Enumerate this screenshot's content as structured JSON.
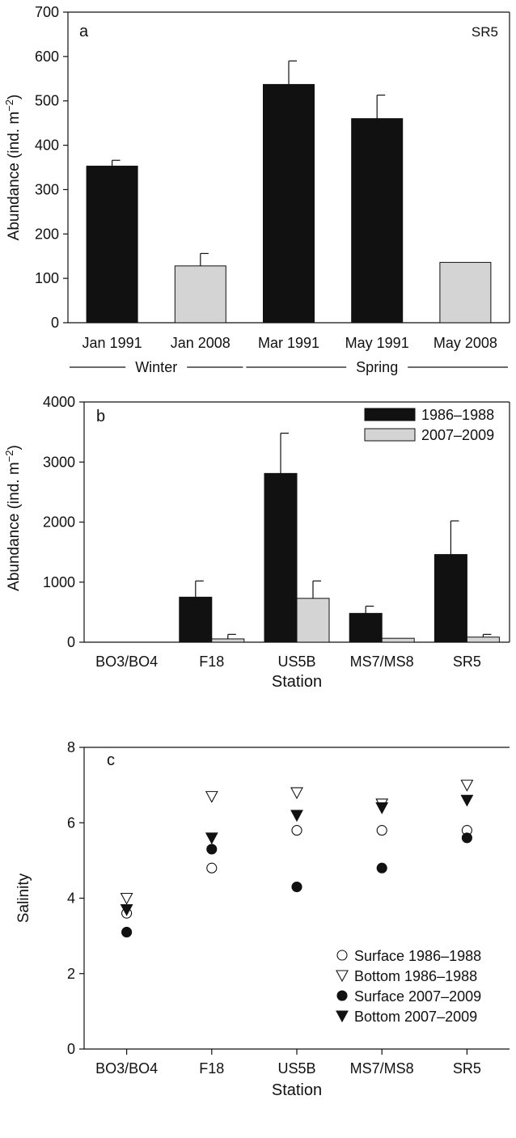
{
  "chart_data": [
    {
      "panel_label": "a",
      "type": "bar",
      "annotation": "SR5",
      "ylabel": "Abundance (ind. m",
      "ylabel_sup": "−2",
      "ylabel_end": ")",
      "ylim": [
        0,
        700
      ],
      "yticks": [
        0,
        100,
        200,
        300,
        400,
        500,
        600,
        700
      ],
      "categories": [
        "Jan 1991",
        "Jan 2008",
        "Mar 1991",
        "May 1991",
        "May 2008"
      ],
      "values": [
        353,
        128,
        537,
        460,
        136
      ],
      "errors": [
        13,
        28,
        53,
        53,
        0
      ],
      "bar_colors": [
        "#111111",
        "#d4d4d4",
        "#111111",
        "#111111",
        "#d4d4d4"
      ],
      "season_groups": [
        {
          "label": "Winter",
          "from": 0,
          "to": 1
        },
        {
          "label": "Spring",
          "from": 2,
          "to": 4
        }
      ]
    },
    {
      "panel_label": "b",
      "type": "bar",
      "ylabel": "Abundance (ind. m",
      "ylabel_sup": "−2",
      "ylabel_end": ")",
      "xlabel": "Station",
      "ylim": [
        0,
        4000
      ],
      "yticks": [
        0,
        1000,
        2000,
        3000,
        4000
      ],
      "categories": [
        "BO3/BO4",
        "F18",
        "US5B",
        "MS7/MS8",
        "SR5"
      ],
      "legend_position": "top-right",
      "series": [
        {
          "name": "1986–1988",
          "color": "#111111",
          "values": [
            0,
            750,
            2810,
            480,
            1460
          ],
          "errors": [
            0,
            270,
            670,
            120,
            560
          ]
        },
        {
          "name": "2007–2009",
          "color": "#d4d4d4",
          "values": [
            0,
            55,
            730,
            65,
            85
          ],
          "errors": [
            0,
            75,
            290,
            0,
            45
          ]
        }
      ]
    },
    {
      "panel_label": "c",
      "type": "scatter",
      "ylabel": "Salinity",
      "xlabel": "Station",
      "ylim": [
        0,
        8
      ],
      "yticks": [
        0,
        2,
        4,
        6,
        8
      ],
      "categories": [
        "BO3/BO4",
        "F18",
        "US5B",
        "MS7/MS8",
        "SR5"
      ],
      "legend_position": "bottom-right",
      "series": [
        {
          "name": "Surface 1986–1988",
          "marker": "circle-open",
          "values": [
            3.6,
            4.8,
            5.8,
            5.8,
            5.8
          ]
        },
        {
          "name": "Bottom 1986–1988",
          "marker": "triangle-open",
          "values": [
            4.0,
            6.7,
            6.8,
            6.5,
            7.0
          ]
        },
        {
          "name": "Surface 2007–2009",
          "marker": "circle-filled",
          "values": [
            3.1,
            5.3,
            4.3,
            4.8,
            5.6
          ]
        },
        {
          "name": "Bottom 2007–2009",
          "marker": "triangle-filled",
          "values": [
            3.7,
            5.6,
            6.2,
            6.4,
            6.6
          ]
        }
      ]
    }
  ]
}
